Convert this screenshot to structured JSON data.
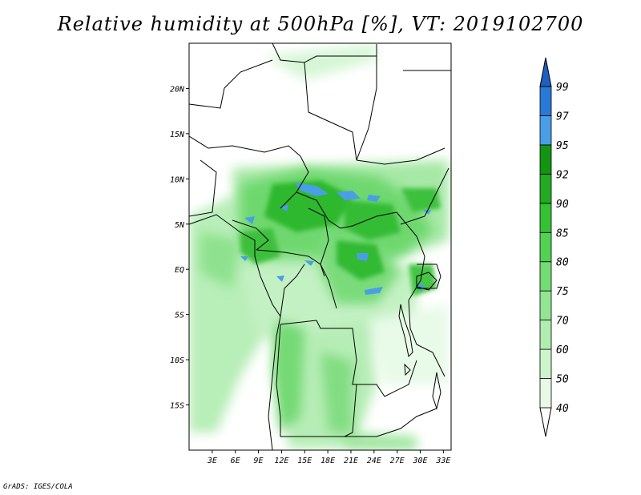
{
  "title": "Relative humidity at 500hPa [%], VT: 2019102700",
  "credit": "GrADS: IGES/COLA",
  "map": {
    "lon_range": [
      0,
      34
    ],
    "lat_range": [
      -20,
      25
    ],
    "lon_ticks": [
      {
        "value": 3,
        "label": "3E"
      },
      {
        "value": 6,
        "label": "6E"
      },
      {
        "value": 9,
        "label": "9E"
      },
      {
        "value": 12,
        "label": "12E"
      },
      {
        "value": 15,
        "label": "15E"
      },
      {
        "value": 18,
        "label": "18E"
      },
      {
        "value": 21,
        "label": "21E"
      },
      {
        "value": 24,
        "label": "24E"
      },
      {
        "value": 27,
        "label": "27E"
      },
      {
        "value": 30,
        "label": "30E"
      },
      {
        "value": 33,
        "label": "33E"
      }
    ],
    "lat_ticks": [
      {
        "value": 20,
        "label": "20N"
      },
      {
        "value": 15,
        "label": "15N"
      },
      {
        "value": 10,
        "label": "10N"
      },
      {
        "value": 5,
        "label": "5N"
      },
      {
        "value": 0,
        "label": "EQ"
      },
      {
        "value": -5,
        "label": "5S"
      },
      {
        "value": -10,
        "label": "10S"
      },
      {
        "value": -15,
        "label": "15S"
      }
    ]
  },
  "colorbar": {
    "labels": [
      "40",
      "50",
      "60",
      "70",
      "75",
      "80",
      "85",
      "90",
      "92",
      "95",
      "97",
      "99"
    ],
    "colors": [
      "#ffffff",
      "#e6fae6",
      "#ccf5cc",
      "#b0edb0",
      "#93e593",
      "#74dc74",
      "#52d152",
      "#34c134",
      "#22ab22",
      "#139413",
      "#4a9ee6",
      "#2a79d8",
      "#1f5fbf"
    ]
  }
}
